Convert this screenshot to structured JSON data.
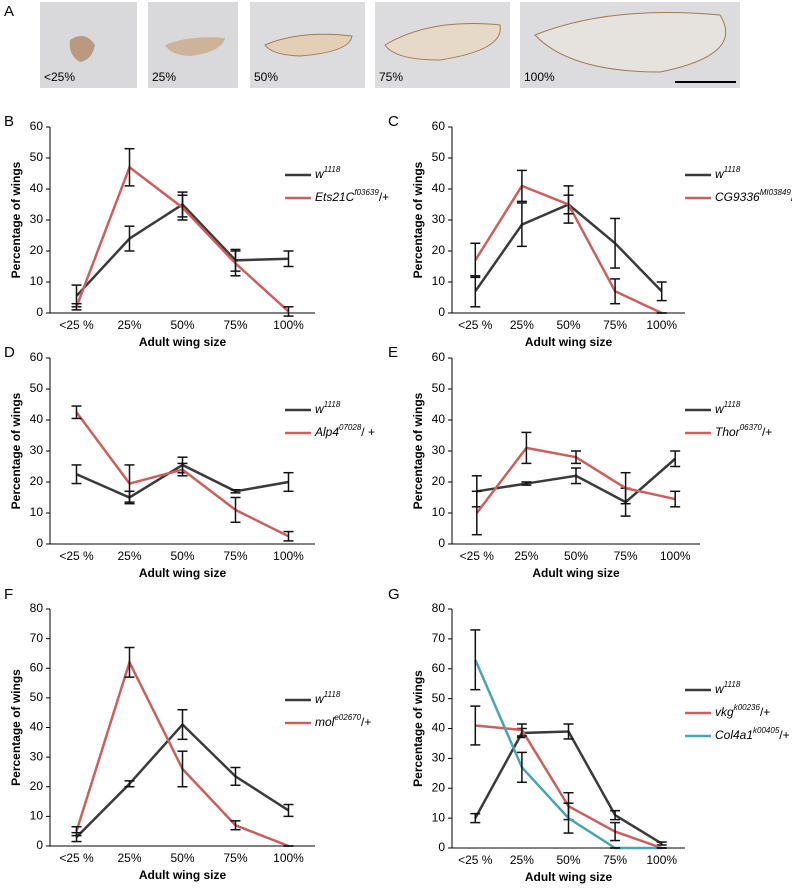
{
  "figure_a": {
    "panel": "A",
    "images": [
      {
        "label": "<25%"
      },
      {
        "label": "25%"
      },
      {
        "label": "50%"
      },
      {
        "label": "75%"
      },
      {
        "label": "100%"
      }
    ]
  },
  "chart_data": [
    {
      "type": "line",
      "panel": "B",
      "x_label": "Adult wing size",
      "y_label": "Percentage of wings",
      "categories": [
        "<25 %",
        "25%",
        "50%",
        "75%",
        "100%"
      ],
      "ylim": [
        0,
        60
      ],
      "yticks": [
        0,
        10,
        20,
        30,
        40,
        50,
        60
      ],
      "series": [
        {
          "name": "w",
          "superscript": "1118",
          "suffix": "",
          "color": "#3a3a3a",
          "values": [
            5.5,
            24,
            35,
            17,
            17.5
          ],
          "errors": [
            3.5,
            4,
            4,
            3.5,
            2.5
          ]
        },
        {
          "name": "Ets21C",
          "superscript": "f03639",
          "suffix": "/+",
          "color": "#c9605e",
          "values": [
            2,
            47,
            34,
            16,
            0.5
          ],
          "errors": [
            1,
            6,
            4,
            4,
            1.5
          ]
        }
      ]
    },
    {
      "type": "line",
      "panel": "C",
      "x_label": "Adult wing size",
      "y_label": "Percentage of wings",
      "categories": [
        "<25 %",
        "25%",
        "50%",
        "75%",
        "100%"
      ],
      "ylim": [
        0,
        60
      ],
      "yticks": [
        0,
        10,
        20,
        30,
        40,
        50,
        60
      ],
      "series": [
        {
          "name": "w",
          "superscript": "1118",
          "suffix": "",
          "color": "#3a3a3a",
          "values": [
            7,
            28.5,
            35,
            22.5,
            7
          ],
          "errors": [
            5,
            7,
            6,
            8,
            3
          ]
        },
        {
          "name": "CG9336",
          "superscript": "MI03849",
          "suffix": "/+",
          "color": "#c9605e",
          "values": [
            17,
            41,
            35,
            7,
            0
          ],
          "errors": [
            5.5,
            5,
            3,
            4,
            0
          ]
        }
      ]
    },
    {
      "type": "line",
      "panel": "D",
      "x_label": "Adult wing size",
      "y_label": "Percentage of wings",
      "categories": [
        "<25 %",
        "25%",
        "50%",
        "75%",
        "100%"
      ],
      "ylim": [
        0,
        60
      ],
      "yticks": [
        0,
        10,
        20,
        30,
        40,
        50,
        60
      ],
      "series": [
        {
          "name": "w",
          "superscript": "1118",
          "suffix": "",
          "color": "#3a3a3a",
          "values": [
            22.5,
            15,
            25.5,
            17,
            20
          ],
          "errors": [
            3,
            2,
            2.5,
            0.5,
            3
          ]
        },
        {
          "name": "Alp4",
          "superscript": "07028",
          "suffix": "/ +",
          "color": "#c9605e",
          "values": [
            42.5,
            19.5,
            24,
            11,
            2.5
          ],
          "errors": [
            2,
            6,
            2,
            4,
            1.5
          ]
        }
      ]
    },
    {
      "type": "line",
      "panel": "E",
      "x_label": "Adult wing size",
      "y_label": "Percentage of wings",
      "categories": [
        "<25 %",
        "25%",
        "50%",
        "75%",
        "100%"
      ],
      "ylim": [
        0,
        60
      ],
      "yticks": [
        0,
        10,
        20,
        30,
        40,
        50,
        60
      ],
      "series": [
        {
          "name": "w",
          "superscript": "1118",
          "suffix": "",
          "color": "#3a3a3a",
          "values": [
            17,
            19.5,
            22,
            13.5,
            27.5
          ],
          "errors": [
            5,
            0.5,
            2.5,
            4.5,
            2.5
          ]
        },
        {
          "name": "Thor",
          "superscript": "06370",
          "suffix": "/+",
          "color": "#c9605e",
          "values": [
            10,
            31,
            28,
            18,
            14.5
          ],
          "errors": [
            7,
            5,
            2,
            5,
            2.5
          ]
        }
      ]
    },
    {
      "type": "line",
      "panel": "F",
      "x_label": "Adult wing size",
      "y_label": "Percentage of wings",
      "categories": [
        "<25 %",
        "25%",
        "50%",
        "75%",
        "100%"
      ],
      "ylim": [
        0,
        80
      ],
      "yticks": [
        0,
        10,
        20,
        30,
        40,
        50,
        60,
        70,
        80
      ],
      "series": [
        {
          "name": "w",
          "superscript": "1118",
          "suffix": "",
          "color": "#3a3a3a",
          "values": [
            3,
            21,
            41,
            23.5,
            12
          ],
          "errors": [
            1.5,
            1,
            5,
            3,
            2
          ]
        },
        {
          "name": "mol",
          "superscript": "e02670",
          "suffix": "/+",
          "color": "#c9605e",
          "values": [
            5,
            62,
            26,
            7,
            0
          ],
          "errors": [
            1.5,
            5,
            6,
            1.5,
            0
          ]
        }
      ]
    },
    {
      "type": "line",
      "panel": "G",
      "x_label": "Adult wing size",
      "y_label": "Percentage of wings",
      "categories": [
        "<25 %",
        "25%",
        "50%",
        "75%",
        "100%"
      ],
      "ylim": [
        0,
        80
      ],
      "yticks": [
        0,
        10,
        20,
        30,
        40,
        50,
        60,
        70,
        80
      ],
      "series": [
        {
          "name": "w",
          "superscript": "1118",
          "suffix": "",
          "color": "#3a3a3a",
          "values": [
            10,
            38.5,
            39,
            11,
            1.5
          ],
          "errors": [
            1.5,
            1.5,
            2.5,
            1.5,
            0.5
          ]
        },
        {
          "name": "vkg",
          "superscript": "k00236",
          "suffix": "/+",
          "color": "#c9605e",
          "values": [
            41,
            39.5,
            14,
            5.5,
            0
          ],
          "errors": [
            6.5,
            2,
            4.5,
            3,
            0
          ]
        },
        {
          "name": "Col4a1",
          "superscript": "k00405",
          "suffix": "/+",
          "color": "#4aa3b4",
          "values": [
            63,
            27,
            10,
            0,
            0
          ],
          "errors": [
            10,
            5,
            5,
            0,
            0
          ]
        }
      ]
    }
  ]
}
